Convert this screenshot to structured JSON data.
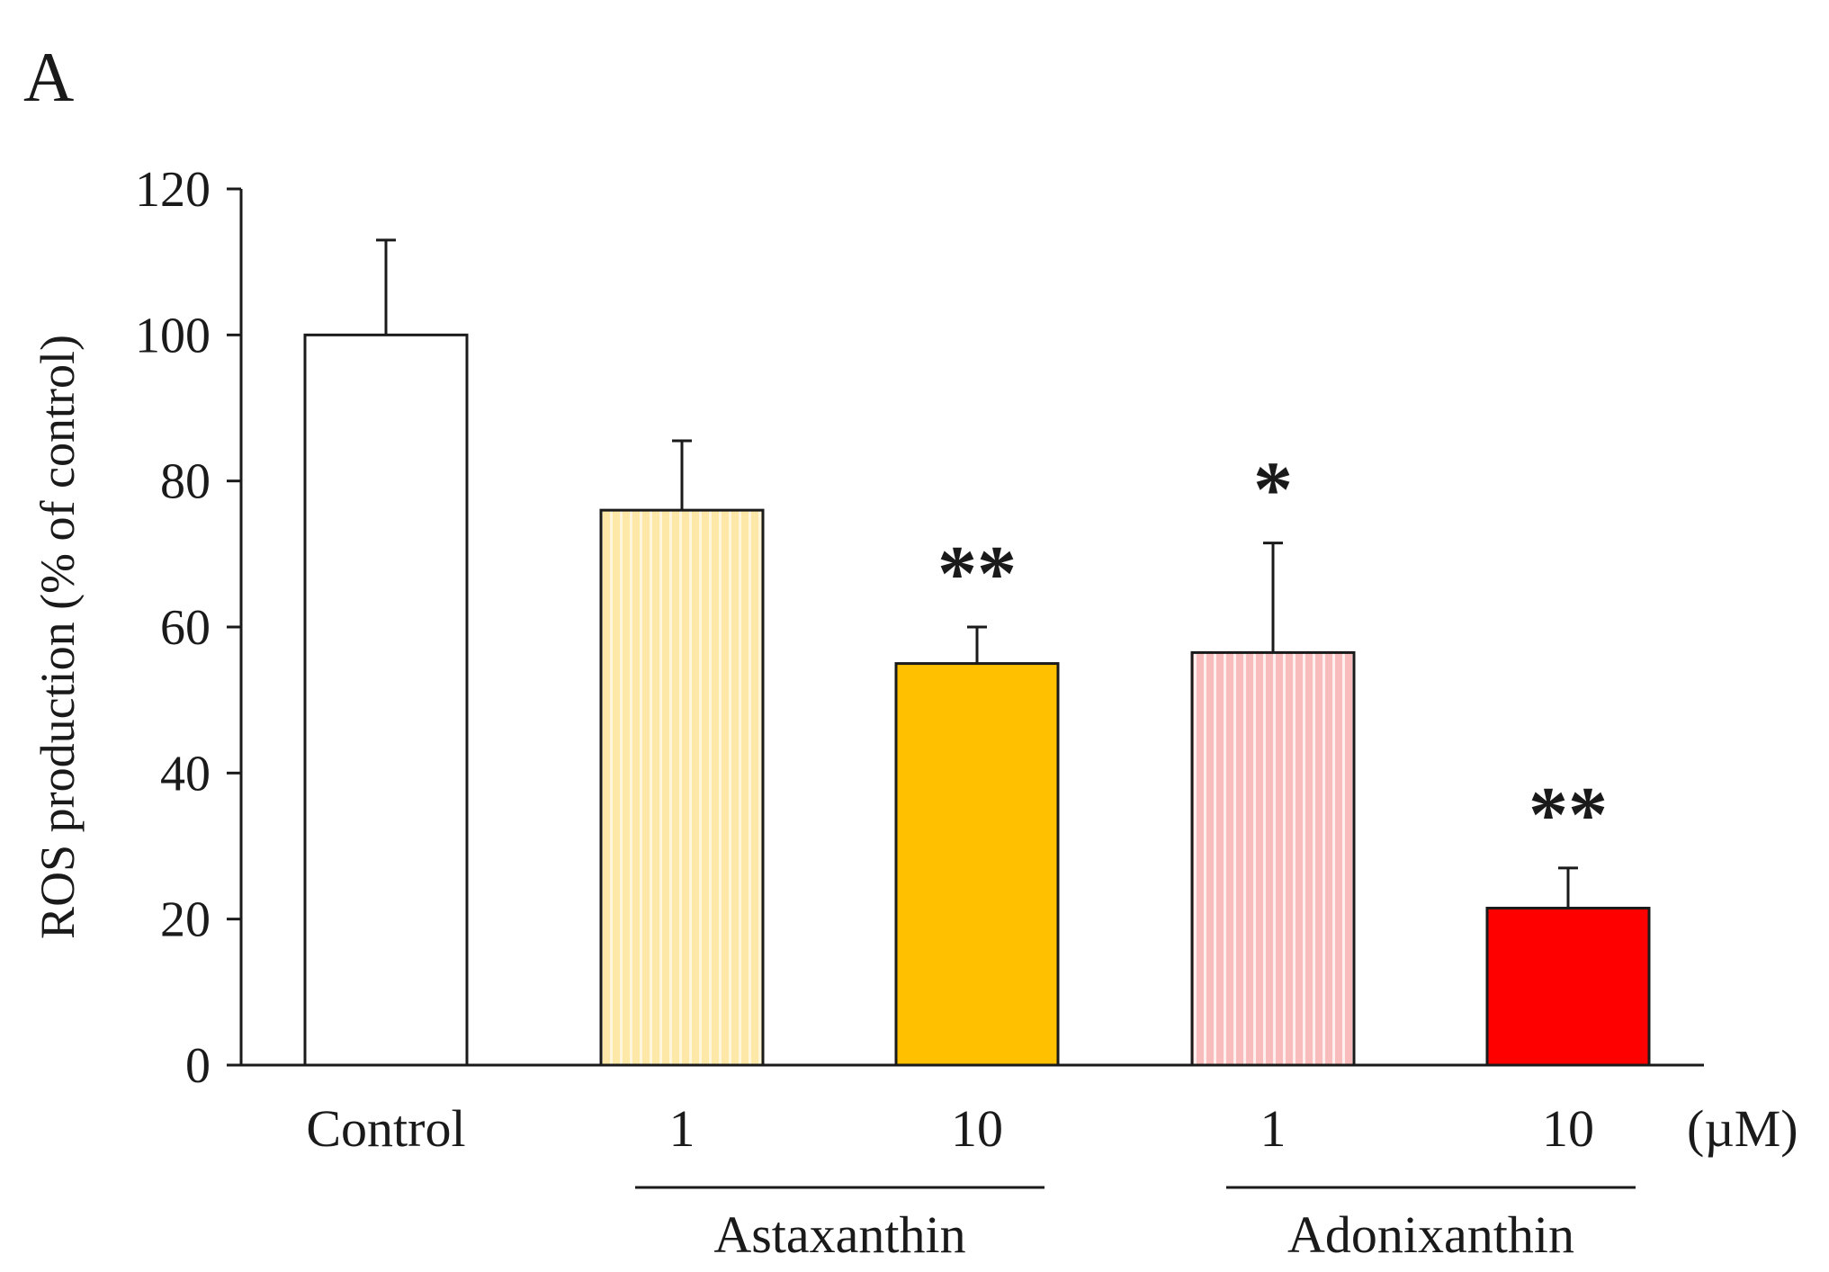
{
  "panel_label": "A",
  "colors": {
    "axis": "#1a1a1a",
    "control": "#ffffff",
    "astaxanthin_1": "#fdebb8",
    "astaxanthin_10": "#ffc000",
    "adonixanthin_1": "#fbc9c9",
    "adonixanthin_10": "#ff0000"
  },
  "chart_data": {
    "type": "bar",
    "title": "",
    "xlabel": "",
    "ylabel": "ROS production  (% of control)",
    "ylim": [
      0,
      120
    ],
    "yticks": [
      0,
      20,
      40,
      60,
      80,
      100,
      120
    ],
    "unit_label": "(µM)",
    "categories": [
      "Control",
      "1",
      "10",
      "1",
      "10"
    ],
    "values": [
      100,
      76,
      55,
      56.5,
      21.5
    ],
    "errors": [
      13,
      9.5,
      5,
      15,
      5.5
    ],
    "significance": [
      "",
      "",
      "**",
      "*",
      "**"
    ],
    "groups": [
      {
        "name": "Astaxanthin",
        "members": [
          1,
          2
        ]
      },
      {
        "name": "Adonixanthin",
        "members": [
          3,
          4
        ]
      }
    ],
    "bar_colors": [
      "#ffffff",
      "#fdebb8",
      "#ffc000",
      "#fbc9c9",
      "#ff0000"
    ],
    "bar_patterns": [
      "none",
      "vertical-stripes",
      "none",
      "vertical-stripes",
      "none"
    ]
  }
}
